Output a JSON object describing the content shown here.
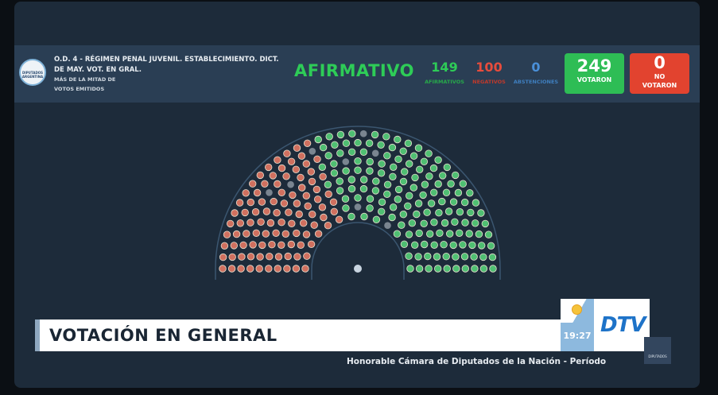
{
  "header": {
    "logo_text": "DIPUTADOS ARGENTINA",
    "title": "O.D. 4 - RÉGIMEN PENAL JUVENIL. ESTABLECIMIENTO. DICT. DE MAY. VOT. EN GRAL.",
    "majority_line1": "MÁS DE LA MITAD DE",
    "majority_line2": "VOTOS EMITIDOS",
    "result": "AFIRMATIVO",
    "afirmativos": {
      "value": "149",
      "label": "AFIRMATIVOS"
    },
    "negativos": {
      "value": "100",
      "label": "NEGATIVOS"
    },
    "abstenciones": {
      "value": "0",
      "label": "ABSTENCIONES"
    },
    "votaron": {
      "value": "249",
      "label": "VOTARON"
    },
    "no_votaron": {
      "value": "0",
      "label_1": "NO",
      "label_2": "VOTARON"
    }
  },
  "colors": {
    "afirmativo": "#2ecc57",
    "negativo": "#e74c3c",
    "abstencion": "#4a90d9",
    "absent": "#7a8590"
  },
  "lower_third": {
    "title": "VOTACIÓN EN GENERAL"
  },
  "bug": {
    "time": "19:27",
    "channel": "DTV"
  },
  "ticker": "Honorable Cámara de Diputados de la Nación - Período",
  "mini_logo": "DIPUTADOS"
}
